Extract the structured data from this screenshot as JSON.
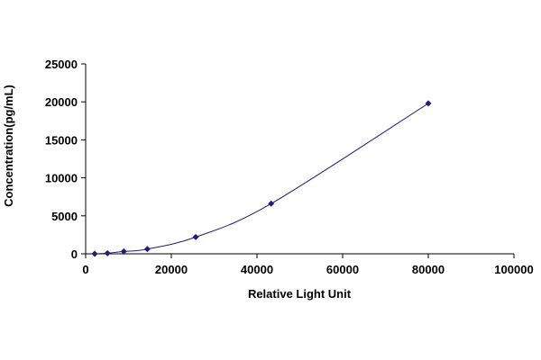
{
  "chart_data": {
    "type": "scatter",
    "xlabel": "Relative Light Unit",
    "ylabel": "Concentration(pg/mL)",
    "xlim": [
      0,
      100000
    ],
    "ylim": [
      0,
      25000
    ],
    "x_ticks": [
      "0",
      "20000",
      "40000",
      "60000",
      "80000",
      "100000"
    ],
    "y_ticks": [
      "0",
      "5000",
      "10000",
      "15000",
      "20000",
      "25000"
    ],
    "grid": false,
    "legend": "none",
    "series": [
      {
        "x": [
          2100,
          5100,
          8900,
          14400,
          25700,
          43300,
          80000
        ],
        "y": [
          0,
          78,
          312,
          625,
          2200,
          6600,
          19800
        ],
        "marker": "diamond",
        "line": "smooth"
      }
    ],
    "colors": {
      "series": "#1f1f7a",
      "axis": "#000000"
    }
  }
}
